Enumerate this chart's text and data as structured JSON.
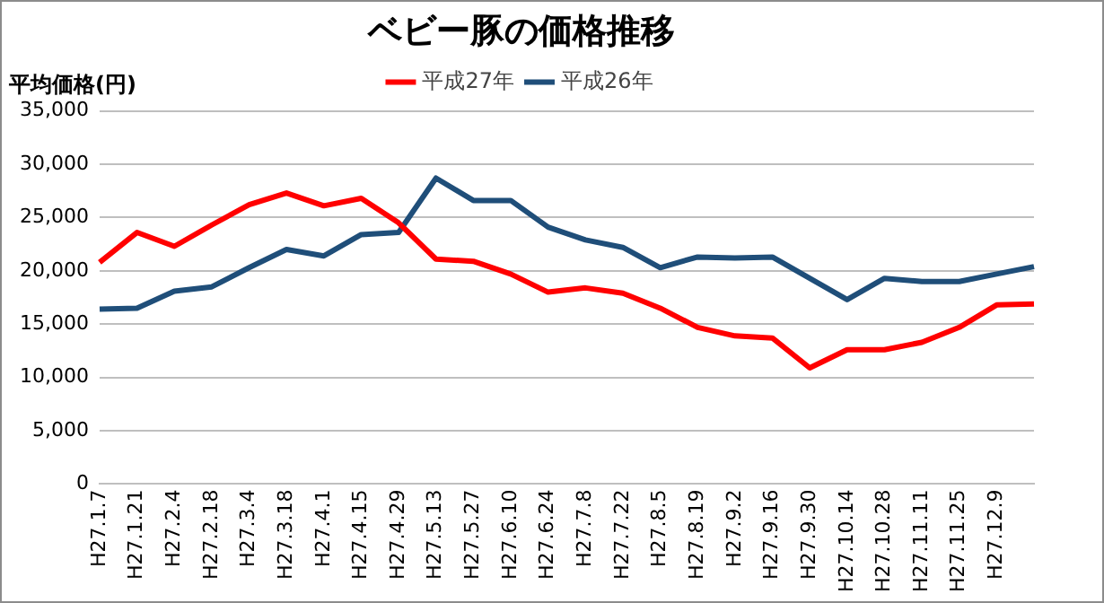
{
  "chart_data": {
    "type": "line",
    "title": "ベビー豚の価格推移",
    "ylabel": "平均価格(円)",
    "categories": [
      "H27.1.7",
      "H27.1.21",
      "H27.2.4",
      "H27.2.18",
      "H27.3.4",
      "H27.3.18",
      "H27.4.1",
      "H27.4.15",
      "H27.4.29",
      "H27.5.13",
      "H27.5.27",
      "H27.6.10",
      "H27.6.24",
      "H27.7.8",
      "H27.7.22",
      "H27.8.5",
      "H27.8.19",
      "H27.9.2",
      "H27.9.16",
      "H27.9.30",
      "H27.10.14",
      "H27.10.28",
      "H27.11.11",
      "H27.11.25",
      "H27.12.9",
      null
    ],
    "series": [
      {
        "name": "平成27年",
        "color": "#ff0000",
        "values": [
          20800,
          23600,
          22300,
          24300,
          26200,
          27300,
          26100,
          26800,
          24500,
          21100,
          20900,
          19700,
          18000,
          18400,
          17900,
          16500,
          14700,
          13900,
          13700,
          10900,
          12600,
          12600,
          13300,
          14700,
          16800,
          16900
        ]
      },
      {
        "name": "平成26年",
        "color": "#1f4e79",
        "values": [
          16400,
          16500,
          18100,
          18500,
          20300,
          22000,
          21400,
          23400,
          23600,
          28700,
          26600,
          26600,
          24100,
          22900,
          22200,
          20300,
          21300,
          21200,
          21300,
          19300,
          17300,
          19300,
          19000,
          19000,
          19700,
          20400
        ]
      }
    ],
    "ylim": [
      0,
      35000
    ],
    "yticks": [
      0,
      {
        "value": 5000,
        "label": "5,000"
      },
      {
        "value": 10000,
        "label": "10,000"
      },
      {
        "value": 15000,
        "label": "15,000"
      },
      {
        "value": 20000,
        "label": "20,000"
      },
      {
        "value": 25000,
        "label": "25,000"
      },
      {
        "value": 30000,
        "label": "30,000"
      },
      {
        "value": 35000,
        "label": "35,000"
      }
    ],
    "grid": "y",
    "legend": "top",
    "marker": "none",
    "line_style": "solid"
  }
}
